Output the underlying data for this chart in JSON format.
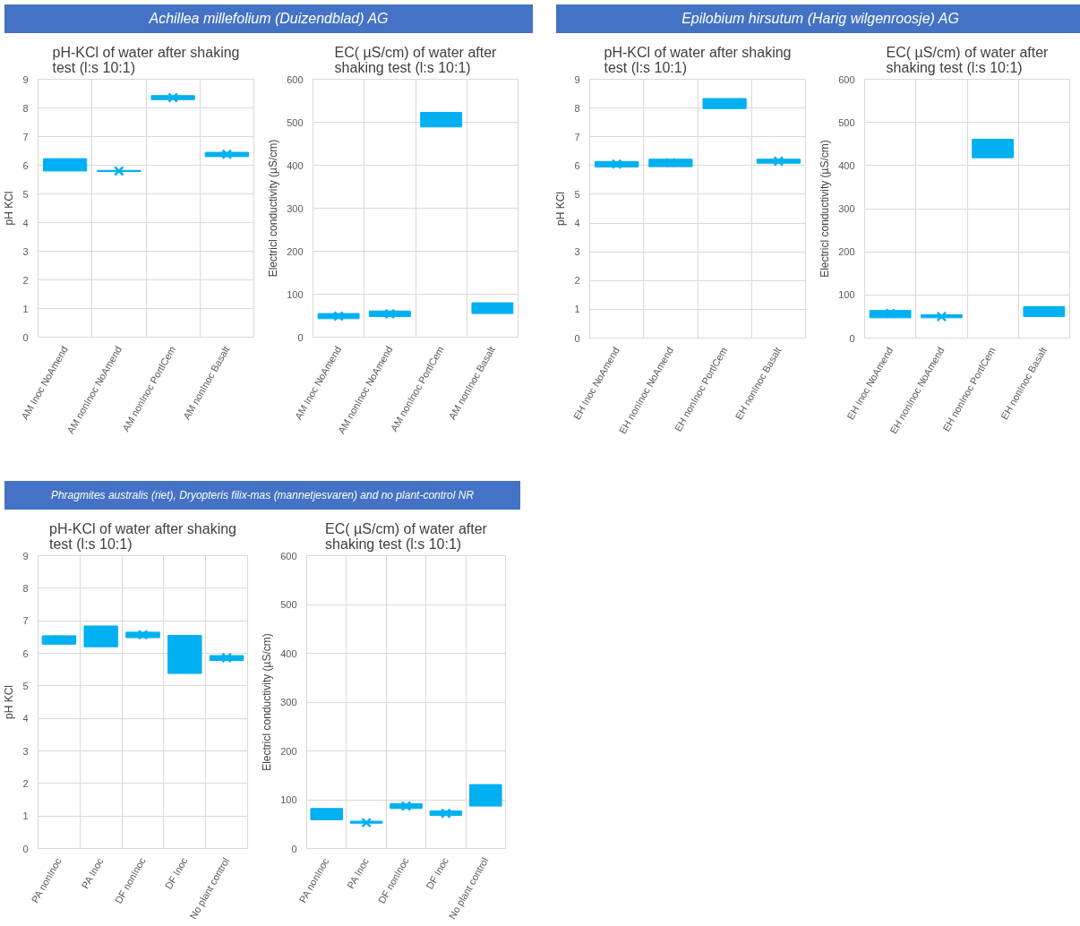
{
  "chart_data": [
    {
      "type": "box",
      "title": "pH-KCl of water after shaking test (l:s 10:1)",
      "ylabel": "pH KCl",
      "annotations": [
        "Achillea millefolium (Duizendblad) AG"
      ],
      "categories": [
        "AM Inoc NoAmend",
        "AM nonInoc NoAmend",
        "AM nonInoc PortlCem",
        "AM nonInoc Basalt"
      ],
      "color": "#00b0f0",
      "marker": "cross",
      "grid": true,
      "ylim": [
        0,
        9
      ],
      "yticks": [
        0,
        1,
        2,
        3,
        4,
        5,
        6,
        7,
        8,
        9
      ],
      "boxes": [
        {
          "low": 5.8,
          "q1": 5.8,
          "median": 6.0,
          "q3": 6.23,
          "high": 6.23
        },
        {
          "low": 5.78,
          "q1": 5.78,
          "median": 5.8,
          "q3": 5.82,
          "high": 5.82,
          "mean": 5.8
        },
        {
          "low": 8.29,
          "q1": 8.29,
          "median": 8.36,
          "q3": 8.43,
          "high": 8.43,
          "mean": 8.36
        },
        {
          "low": 6.3,
          "q1": 6.3,
          "median": 6.38,
          "q3": 6.45,
          "high": 6.45,
          "mean": 6.38
        }
      ]
    },
    {
      "type": "box",
      "title": "EC( µS/cm) of water after shaking test (l:s 10:1)",
      "ylabel": "Electricl conductivity (µS/cm)",
      "categories": [
        "AM Inoc NoAmend",
        "AM nonInoc NoAmend",
        "AM nonInoc PortlCem",
        "AM nonInoc Basalt"
      ],
      "color": "#00b0f0",
      "marker": "cross",
      "grid": true,
      "ylim": [
        0,
        600
      ],
      "yticks": [
        0,
        100,
        200,
        300,
        400,
        500,
        600
      ],
      "boxes": [
        {
          "low": 43,
          "q1": 43,
          "median": 49,
          "q3": 55,
          "high": 55,
          "mean": 49
        },
        {
          "low": 48,
          "q1": 48,
          "median": 54,
          "q3": 61,
          "high": 61,
          "mean": 54
        },
        {
          "low": 489,
          "q1": 489,
          "median": 506,
          "q3": 523,
          "high": 523
        },
        {
          "low": 55,
          "q1": 55,
          "median": 67,
          "q3": 80,
          "high": 80
        }
      ]
    },
    {
      "type": "box",
      "title": "pH-KCl of water after shaking test (l:s 10:1)",
      "ylabel": "pH KCl",
      "annotations": [
        "Epilobium hirsutum (Harig wilgenroosje) AG"
      ],
      "categories": [
        "EH Inoc NoAmend",
        "EH nonInoc NoAmend",
        "EH nonInoc PortlCem",
        "EH nonInoc Basalt"
      ],
      "color": "#00b0f0",
      "marker": "cross",
      "grid": true,
      "ylim": [
        0,
        9
      ],
      "yticks": [
        0,
        1,
        2,
        3,
        4,
        5,
        6,
        7,
        8,
        9
      ],
      "boxes": [
        {
          "low": 5.95,
          "q1": 5.95,
          "median": 6.05,
          "q3": 6.14,
          "high": 6.14,
          "mean": 6.05
        },
        {
          "low": 5.96,
          "q1": 5.96,
          "median": 6.1,
          "q3": 6.22,
          "high": 6.22,
          "mean": 6.1
        },
        {
          "low": 7.98,
          "q1": 7.98,
          "median": 8.15,
          "q3": 8.33,
          "high": 8.33
        },
        {
          "low": 6.08,
          "q1": 6.08,
          "median": 6.15,
          "q3": 6.22,
          "high": 6.22,
          "mean": 6.15
        }
      ]
    },
    {
      "type": "box",
      "title": "EC( µS/cm) of water after shaking test (l:s 10:1)",
      "ylabel": "Electricl conductivity (µS/cm)",
      "categories": [
        "EH Inoc NoAmend",
        "EH nonInoc NoAmend",
        "EH nonInoc PortlCem",
        "EH nonInoc Basalt"
      ],
      "color": "#00b0f0",
      "marker": "cross",
      "grid": true,
      "ylim": [
        0,
        600
      ],
      "yticks": [
        0,
        100,
        200,
        300,
        400,
        500,
        600
      ],
      "boxes": [
        {
          "low": 47,
          "q1": 47,
          "median": 57,
          "q3": 64,
          "high": 64,
          "mean": 57
        },
        {
          "low": 47,
          "q1": 47,
          "median": 50,
          "q3": 54,
          "high": 54,
          "mean": 50
        },
        {
          "low": 418,
          "q1": 418,
          "median": 440,
          "q3": 461,
          "high": 461
        },
        {
          "low": 50,
          "q1": 50,
          "median": 62,
          "q3": 73,
          "high": 73
        }
      ]
    },
    {
      "type": "box",
      "title": "pH-KCl of water after shaking test (l:s 10:1)",
      "ylabel": "pH KCl",
      "annotations": [
        "Phragmites australis (riet), Dryopteris filix-mas (mannetjesvaren) and no plant-control NR"
      ],
      "categories": [
        "PA nonInoc",
        "PA Inoc",
        "DF nonInoc",
        "DF Inoc",
        "No plant control"
      ],
      "color": "#00b0f0",
      "marker": "cross",
      "grid": true,
      "ylim": [
        0,
        9
      ],
      "yticks": [
        0,
        1,
        2,
        3,
        4,
        5,
        6,
        7,
        8,
        9
      ],
      "boxes": [
        {
          "low": 6.28,
          "q1": 6.28,
          "median": 6.41,
          "q3": 6.54,
          "high": 6.54,
          "mean": 6.41
        },
        {
          "low": 6.2,
          "q1": 6.2,
          "median": 6.5,
          "q3": 6.84,
          "high": 6.84
        },
        {
          "low": 6.48,
          "q1": 6.48,
          "median": 6.57,
          "q3": 6.65,
          "high": 6.65,
          "mean": 6.57
        },
        {
          "low": 5.38,
          "q1": 5.38,
          "median": 6.0,
          "q3": 6.55,
          "high": 6.55
        },
        {
          "low": 5.78,
          "q1": 5.78,
          "median": 5.86,
          "q3": 5.93,
          "high": 5.93,
          "mean": 5.86
        }
      ]
    },
    {
      "type": "box",
      "title": "EC( µS/cm) of water after shaking test (l:s 10:1)",
      "ylabel": "Electricl conductivity (µS/cm)",
      "categories": [
        "PA nonInoc",
        "PA Inoc",
        "DF nonInoc",
        "DF Inoc",
        "No plant control"
      ],
      "color": "#00b0f0",
      "marker": "cross",
      "grid": true,
      "ylim": [
        0,
        600
      ],
      "yticks": [
        0,
        100,
        200,
        300,
        400,
        500,
        600
      ],
      "boxes": [
        {
          "low": 59,
          "q1": 59,
          "median": 70,
          "q3": 82,
          "high": 82
        },
        {
          "low": 52,
          "q1": 52,
          "median": 53,
          "q3": 56,
          "high": 56,
          "mean": 53
        },
        {
          "low": 82,
          "q1": 82,
          "median": 87,
          "q3": 92,
          "high": 92,
          "mean": 87
        },
        {
          "low": 68,
          "q1": 68,
          "median": 72,
          "q3": 77,
          "high": 77,
          "mean": 72
        },
        {
          "low": 87,
          "q1": 87,
          "median": 110,
          "q3": 131,
          "high": 131
        }
      ]
    }
  ]
}
